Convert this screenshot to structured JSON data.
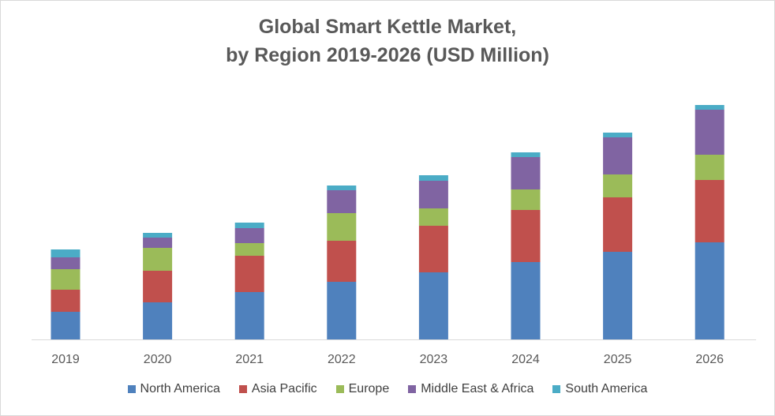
{
  "chart_data": {
    "type": "bar",
    "stacked": true,
    "title_line1": "Global Smart Kettle Market,",
    "title_line2": "by Region 2019-2026 (USD Million)",
    "categories": [
      "2019",
      "2020",
      "2021",
      "2022",
      "2023",
      "2024",
      "2025",
      "2026"
    ],
    "series": [
      {
        "name": "North America",
        "color": "#4f81bd",
        "values": [
          35,
          47,
          60,
          73,
          85,
          98,
          111,
          123
        ]
      },
      {
        "name": "Asia Pacific",
        "color": "#c0504d",
        "values": [
          28,
          40,
          46,
          52,
          59,
          66,
          69,
          79
        ]
      },
      {
        "name": "Europe",
        "color": "#9bbb59",
        "values": [
          26,
          29,
          16,
          35,
          22,
          26,
          29,
          32
        ]
      },
      {
        "name": "Middle East & Africa",
        "color": "#8064a2",
        "values": [
          15,
          13,
          19,
          29,
          35,
          41,
          47,
          57
        ]
      },
      {
        "name": "South America",
        "color": "#4bacc6",
        "values": [
          10,
          6,
          7,
          6,
          7,
          6,
          6,
          6
        ]
      }
    ],
    "y_axis_visible": false,
    "grid": false,
    "legend_position": "bottom"
  }
}
